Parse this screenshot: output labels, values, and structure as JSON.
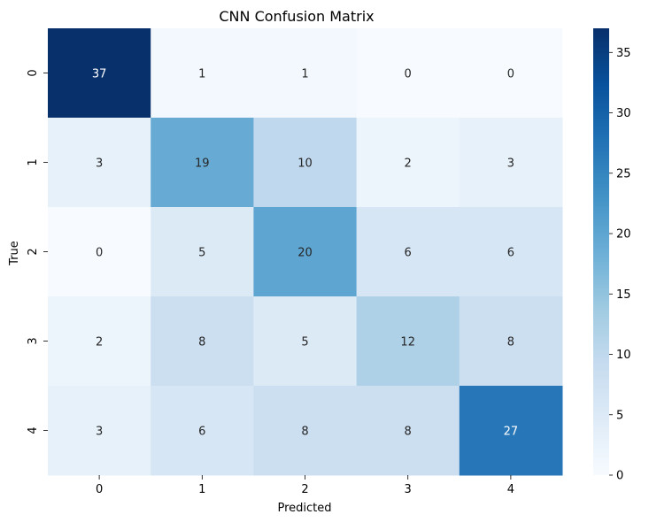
{
  "chart_data": {
    "type": "heatmap",
    "title": "CNN Confusion Matrix",
    "xlabel": "Predicted",
    "ylabel": "True",
    "x_categories": [
      "0",
      "1",
      "2",
      "3",
      "4"
    ],
    "y_categories": [
      "0",
      "1",
      "2",
      "3",
      "4"
    ],
    "values": [
      [
        37,
        1,
        1,
        0,
        0
      ],
      [
        3,
        19,
        10,
        2,
        3
      ],
      [
        0,
        5,
        20,
        6,
        6
      ],
      [
        2,
        8,
        5,
        12,
        8
      ],
      [
        3,
        6,
        8,
        8,
        27
      ]
    ],
    "colormap": "Blues",
    "colorbar": {
      "range": [
        0,
        37
      ],
      "ticks": [
        0,
        5,
        10,
        15,
        20,
        25,
        30,
        35
      ]
    },
    "annotations": true,
    "grid": false
  }
}
